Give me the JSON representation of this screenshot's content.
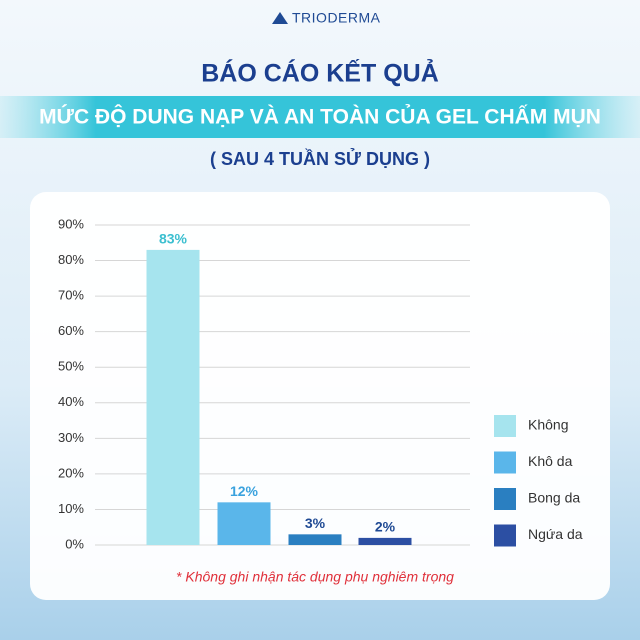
{
  "chart_data": {
    "type": "bar",
    "brand": "TRIODERMA",
    "title": "BÁO CÁO KẾT QUẢ",
    "subtitle": "MỨC ĐỘ DUNG NẠP VÀ AN TOÀN CỦA GEL CHẤM MỤN",
    "note": "( SAU 4 TUẦN SỬ DỤNG )",
    "footnote": "* Không ghi nhận tác dụng phụ nghiêm trọng",
    "categories": [
      "Không",
      "Khô da",
      "Bong da",
      "Ngứa da"
    ],
    "values": [
      83,
      12,
      3,
      2
    ],
    "value_labels": [
      "83%",
      "12%",
      "3%",
      "2%"
    ],
    "colors": [
      "#a6e4ee",
      "#5ab6ea",
      "#2a7fc1",
      "#2c4fa3"
    ],
    "ylim": [
      0,
      90
    ],
    "yticks": [
      {
        "value": 0,
        "label": "0%"
      },
      {
        "value": 10,
        "label": "10%"
      },
      {
        "value": 20,
        "label": "20%"
      },
      {
        "value": 30,
        "label": "30%"
      },
      {
        "value": 40,
        "label": "40%"
      },
      {
        "value": 50,
        "label": "50%"
      },
      {
        "value": 60,
        "label": "60%"
      },
      {
        "value": 70,
        "label": "70%"
      },
      {
        "value": 80,
        "label": "80%"
      },
      {
        "value": 90,
        "label": "90%"
      }
    ],
    "grid": true
  }
}
